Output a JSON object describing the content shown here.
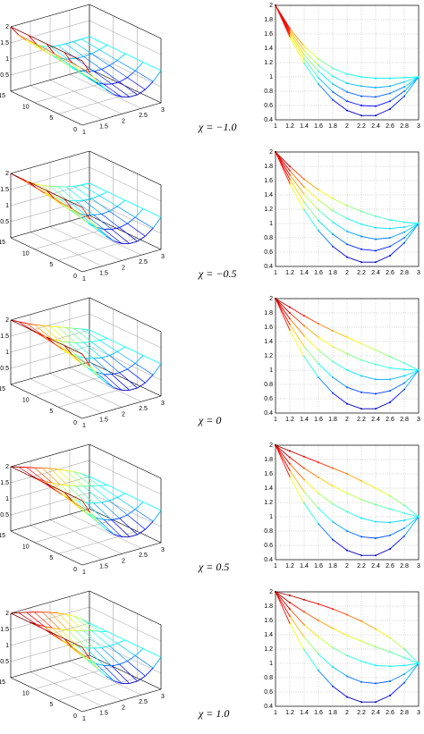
{
  "chart_data": [
    {
      "type": "line",
      "label": "χ = −1.0",
      "colormap": "jet",
      "grid": true,
      "x": [
        1,
        1.2,
        1.4,
        1.6,
        1.8,
        2,
        2.2,
        2.4,
        2.6,
        2.8,
        3
      ],
      "xlim": [
        1,
        3
      ],
      "xticks": [
        1,
        1.2,
        1.4,
        1.6,
        1.8,
        2,
        2.2,
        2.4,
        2.6,
        2.8,
        3
      ],
      "ylim": [
        0.4,
        2
      ],
      "yticks": [
        0.4,
        0.6,
        0.8,
        1,
        1.2,
        1.4,
        1.6,
        1.8,
        2
      ],
      "series": [
        {
          "t": 15,
          "values": [
            2,
            1.68,
            1.43,
            1.25,
            1.12,
            1.04,
            1.0,
            0.98,
            0.98,
            0.99,
            1
          ]
        },
        {
          "t": 11.25,
          "values": [
            2,
            1.65,
            1.37,
            1.16,
            1.01,
            0.91,
            0.87,
            0.85,
            0.87,
            0.93,
            1
          ]
        },
        {
          "t": 7.5,
          "values": [
            2,
            1.62,
            1.31,
            1.08,
            0.9,
            0.79,
            0.73,
            0.72,
            0.77,
            0.86,
            1
          ]
        },
        {
          "t": 3.75,
          "values": [
            2,
            1.59,
            1.25,
            0.99,
            0.79,
            0.66,
            0.6,
            0.59,
            0.66,
            0.8,
            1
          ]
        },
        {
          "t": 0,
          "values": [
            2,
            1.56,
            1.19,
            0.9,
            0.68,
            0.53,
            0.46,
            0.46,
            0.55,
            0.73,
            1
          ]
        }
      ],
      "surface": {
        "xlim": [
          1,
          3
        ],
        "xticks": [
          1,
          1.5,
          2,
          2.5,
          3
        ],
        "tlim": [
          0,
          15
        ],
        "tticks": [
          0,
          5,
          10,
          15
        ],
        "zlim": [
          0,
          2
        ],
        "zticks": [
          0.5,
          1,
          1.5,
          2
        ]
      }
    },
    {
      "type": "line",
      "label": "χ = −0.5",
      "colormap": "jet",
      "grid": true,
      "x": [
        1,
        1.2,
        1.4,
        1.6,
        1.8,
        2,
        2.2,
        2.4,
        2.6,
        2.8,
        3
      ],
      "xlim": [
        1,
        3
      ],
      "xticks": [
        1,
        1.2,
        1.4,
        1.6,
        1.8,
        2,
        2.2,
        2.4,
        2.6,
        2.8,
        3
      ],
      "ylim": [
        0.4,
        2
      ],
      "yticks": [
        0.4,
        0.6,
        0.8,
        1,
        1.2,
        1.4,
        1.6,
        1.8,
        2
      ],
      "series": [
        {
          "t": 15,
          "values": [
            2,
            1.8,
            1.62,
            1.47,
            1.35,
            1.25,
            1.17,
            1.1,
            1.05,
            1.02,
            1
          ]
        },
        {
          "t": 11.25,
          "values": [
            2,
            1.74,
            1.51,
            1.33,
            1.18,
            1.07,
            0.99,
            0.94,
            0.93,
            0.95,
            1
          ]
        },
        {
          "t": 7.5,
          "values": [
            2,
            1.68,
            1.41,
            1.19,
            1.02,
            0.89,
            0.82,
            0.78,
            0.8,
            0.88,
            1
          ]
        },
        {
          "t": 3.75,
          "values": [
            2,
            1.62,
            1.3,
            1.04,
            0.85,
            0.71,
            0.64,
            0.62,
            0.68,
            0.8,
            1
          ]
        },
        {
          "t": 0,
          "values": [
            2,
            1.56,
            1.19,
            0.9,
            0.68,
            0.53,
            0.46,
            0.46,
            0.55,
            0.73,
            1
          ]
        }
      ],
      "surface": {
        "xlim": [
          1,
          3
        ],
        "xticks": [
          1,
          1.5,
          2,
          2.5,
          3
        ],
        "tlim": [
          0,
          15
        ],
        "tticks": [
          0,
          5,
          10,
          15
        ],
        "zlim": [
          0,
          2
        ],
        "zticks": [
          0.5,
          1,
          1.5,
          2
        ]
      }
    },
    {
      "type": "line",
      "label": "χ = 0",
      "colormap": "jet",
      "grid": true,
      "x": [
        1,
        1.2,
        1.4,
        1.6,
        1.8,
        2,
        2.2,
        2.4,
        2.6,
        2.8,
        3
      ],
      "xlim": [
        1,
        3
      ],
      "xticks": [
        1,
        1.2,
        1.4,
        1.6,
        1.8,
        2,
        2.2,
        2.4,
        2.6,
        2.8,
        3
      ],
      "ylim": [
        0.4,
        2
      ],
      "yticks": [
        0.4,
        0.6,
        0.8,
        1,
        1.2,
        1.4,
        1.6,
        1.8,
        2
      ],
      "series": [
        {
          "t": 15,
          "values": [
            2,
            1.88,
            1.76,
            1.65,
            1.55,
            1.46,
            1.37,
            1.28,
            1.19,
            1.1,
            1
          ]
        },
        {
          "t": 11.25,
          "values": [
            2,
            1.8,
            1.62,
            1.46,
            1.33,
            1.23,
            1.14,
            1.08,
            1.03,
            1.01,
            1
          ]
        },
        {
          "t": 7.5,
          "values": [
            2,
            1.72,
            1.48,
            1.28,
            1.12,
            1,
            0.92,
            0.87,
            0.87,
            0.92,
            1
          ]
        },
        {
          "t": 3.75,
          "values": [
            2,
            1.64,
            1.33,
            1.09,
            0.9,
            0.76,
            0.69,
            0.67,
            0.71,
            0.82,
            1
          ]
        },
        {
          "t": 0,
          "values": [
            2,
            1.56,
            1.19,
            0.9,
            0.68,
            0.53,
            0.46,
            0.46,
            0.55,
            0.73,
            1
          ]
        }
      ],
      "surface": {
        "xlim": [
          1,
          3
        ],
        "xticks": [
          1,
          1.5,
          2,
          2.5,
          3
        ],
        "tlim": [
          0,
          15
        ],
        "tticks": [
          0,
          5,
          10,
          15
        ],
        "zlim": [
          0,
          2
        ],
        "zticks": [
          0.5,
          1,
          1.5,
          2
        ]
      }
    },
    {
      "type": "line",
      "label": "χ = 0.5",
      "colormap": "jet",
      "grid": true,
      "x": [
        1,
        1.2,
        1.4,
        1.6,
        1.8,
        2,
        2.2,
        2.4,
        2.6,
        2.8,
        3
      ],
      "xlim": [
        1,
        3
      ],
      "xticks": [
        1,
        1.2,
        1.4,
        1.6,
        1.8,
        2,
        2.2,
        2.4,
        2.6,
        2.8,
        3
      ],
      "ylim": [
        0.4,
        2
      ],
      "yticks": [
        0.4,
        0.6,
        0.8,
        1,
        1.2,
        1.4,
        1.6,
        1.8,
        2
      ],
      "series": [
        {
          "t": 15,
          "values": [
            2,
            1.92,
            1.84,
            1.76,
            1.68,
            1.6,
            1.5,
            1.4,
            1.29,
            1.16,
            1
          ]
        },
        {
          "t": 11.25,
          "values": [
            2,
            1.83,
            1.68,
            1.55,
            1.43,
            1.33,
            1.24,
            1.17,
            1.11,
            1.05,
            1
          ]
        },
        {
          "t": 7.5,
          "values": [
            2,
            1.74,
            1.52,
            1.33,
            1.18,
            1.07,
            0.98,
            0.93,
            0.92,
            0.95,
            1
          ]
        },
        {
          "t": 3.75,
          "values": [
            2,
            1.65,
            1.35,
            1.12,
            0.93,
            0.8,
            0.72,
            0.7,
            0.74,
            0.84,
            1
          ]
        },
        {
          "t": 0,
          "values": [
            2,
            1.56,
            1.19,
            0.9,
            0.68,
            0.53,
            0.46,
            0.46,
            0.55,
            0.73,
            1
          ]
        }
      ],
      "surface": {
        "xlim": [
          1,
          3
        ],
        "xticks": [
          1,
          1.5,
          2,
          2.5,
          3
        ],
        "tlim": [
          0,
          15
        ],
        "tticks": [
          0,
          5,
          10,
          15
        ],
        "zlim": [
          0,
          2
        ],
        "zticks": [
          0.5,
          1,
          1.5,
          2
        ]
      }
    },
    {
      "type": "line",
      "label": "χ = 1.0",
      "colormap": "jet",
      "grid": true,
      "x": [
        1,
        1.2,
        1.4,
        1.6,
        1.8,
        2,
        2.2,
        2.4,
        2.6,
        2.8,
        3
      ],
      "xlim": [
        1,
        3
      ],
      "xticks": [
        1,
        1.2,
        1.4,
        1.6,
        1.8,
        2,
        2.2,
        2.4,
        2.6,
        2.8,
        3
      ],
      "ylim": [
        0.4,
        2
      ],
      "yticks": [
        0.4,
        0.6,
        0.8,
        1,
        1.2,
        1.4,
        1.6,
        1.8,
        2
      ],
      "series": [
        {
          "t": 15,
          "values": [
            2,
            1.95,
            1.89,
            1.83,
            1.76,
            1.68,
            1.59,
            1.48,
            1.36,
            1.2,
            1
          ]
        },
        {
          "t": 11.25,
          "values": [
            2,
            1.85,
            1.72,
            1.6,
            1.49,
            1.39,
            1.31,
            1.23,
            1.16,
            1.08,
            1
          ]
        },
        {
          "t": 7.5,
          "values": [
            2,
            1.76,
            1.54,
            1.37,
            1.22,
            1.11,
            1.03,
            0.97,
            0.96,
            0.97,
            1
          ]
        },
        {
          "t": 3.75,
          "values": [
            2,
            1.66,
            1.37,
            1.13,
            0.95,
            0.82,
            0.74,
            0.72,
            0.75,
            0.85,
            1
          ]
        },
        {
          "t": 0,
          "values": [
            2,
            1.56,
            1.19,
            0.9,
            0.68,
            0.53,
            0.46,
            0.46,
            0.55,
            0.73,
            1
          ]
        }
      ],
      "surface": {
        "xlim": [
          1,
          3
        ],
        "xticks": [
          1,
          1.5,
          2,
          2.5,
          3
        ],
        "tlim": [
          0,
          15
        ],
        "tticks": [
          0,
          5,
          10,
          15
        ],
        "zlim": [
          0,
          2
        ],
        "zticks": [
          0.5,
          1,
          1.5,
          2
        ]
      }
    }
  ]
}
